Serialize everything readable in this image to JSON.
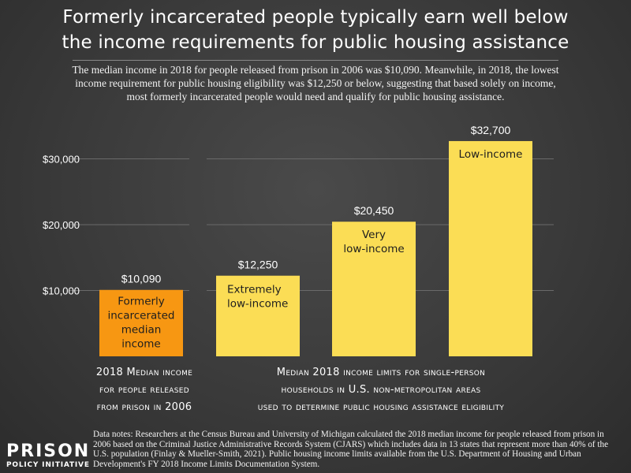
{
  "title_line1": "Formerly incarcerated people typically earn well below",
  "title_line2": "the income requirements for public housing assistance",
  "subtitle": "The median income in 2018 for people released from prison in 2006 was $10,090. Meanwhile, in 2018, the lowest income requirement for public housing eligibility was $12,250 or below, suggesting that based solely on income, most formerly incarcerated people would need and qualify for public housing assistance.",
  "caption_left": [
    "2018 Median income",
    "for people released",
    "from prison in 2006"
  ],
  "caption_right": [
    "Median 2018 income limits for single-person",
    "households in U.S. non-metropolitan areas",
    "used to determine public housing assistance eligibility"
  ],
  "data_notes": "Data notes: Researchers at the Census Bureau and University of Michigan calculated the 2018 median income for people released from prison in 2006 based on the Criminal Justice Administrative Records System (CJARS) which includes data in 13 states that represent more than 40% of the U.S. population (Finlay & Mueller-Smith, 2021). Public housing income limits available from the U.S. Department of Housing and Urban Development's FY 2018 Income Limits Documentation System.",
  "logo": {
    "line1": "PRISON",
    "line2": "POLICY INITIATIVE"
  },
  "colors": {
    "orange": "#f79712",
    "yellow": "#fbdd55",
    "grid": "#6a6a6a"
  },
  "chart_data": {
    "type": "bar",
    "title": "Formerly incarcerated people typically earn well below the income requirements for public housing assistance",
    "ylim": [
      0,
      34000
    ],
    "yticks": [
      10000,
      20000,
      30000
    ],
    "ytick_labels": [
      "$10,000",
      "$20,000",
      "$30,000"
    ],
    "grid": true,
    "categories": [
      "Formerly incarcerated median income",
      "Extremely low-income",
      "Very low-income",
      "Low-income"
    ],
    "values": [
      10090,
      12250,
      20450,
      32700
    ],
    "value_labels": [
      "$10,090",
      "$12,250",
      "$20,450",
      "$32,700"
    ],
    "bar_labels": [
      [
        "Formerly",
        "incarcerated",
        "median",
        "income"
      ],
      [
        "Extremely",
        "low-income"
      ],
      [
        "Very",
        "low-income"
      ],
      [
        "Low-income"
      ]
    ],
    "bar_colors": [
      "#f79712",
      "#fbdd55",
      "#fbdd55",
      "#fbdd55"
    ]
  }
}
